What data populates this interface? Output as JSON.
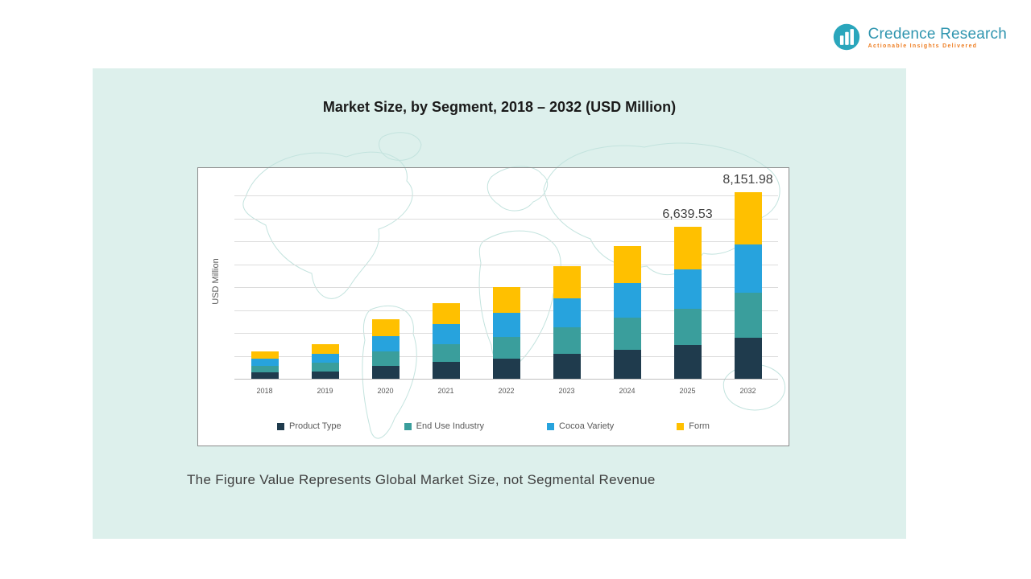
{
  "brand": {
    "name": "Credence Research",
    "tagline": "Actionable Insights Delivered",
    "icon": "bar-chart-logo-icon",
    "name_color": "#2F95AF",
    "tagline_color": "#EE7E23",
    "icon_color": "#2AA6BC"
  },
  "panel": {
    "background": "#DDF0EC"
  },
  "chart_data": {
    "type": "bar",
    "stacked": true,
    "title": "Market Size, by Segment, 2018 – 2032 (USD Million)",
    "ylabel": "USD Million",
    "xlabel": "",
    "categories": [
      "2018",
      "2019",
      "2020",
      "2021",
      "2022",
      "2023",
      "2024",
      "2025",
      "2032"
    ],
    "series": [
      {
        "name": "Product Type",
        "color": "#1F3B4D",
        "values": [
          264,
          330,
          572,
          726,
          880,
          1078,
          1276,
          1460.7,
          1793.44
        ]
      },
      {
        "name": "End Use Industry",
        "color": "#3A9E9C",
        "values": [
          288,
          360,
          624,
          792,
          960,
          1176,
          1392,
          1593.49,
          1956.48
        ]
      },
      {
        "name": "Cocoa Variety",
        "color": "#27A3DD",
        "values": [
          312,
          390,
          676,
          858,
          1040,
          1274,
          1508,
          1726.28,
          2119.51
        ]
      },
      {
        "name": "Form",
        "color": "#FFC000",
        "values": [
          336,
          420,
          728,
          924,
          1120,
          1372,
          1624,
          1859.06,
          2282.55
        ]
      }
    ],
    "totals": [
      1200,
      1500,
      2600,
      3300,
      4000,
      4900,
      5800,
      6639.53,
      8151.98
    ],
    "data_labels": [
      {
        "category": "2025",
        "text": "6,639.53"
      },
      {
        "category": "2032",
        "text": "8,151.98"
      }
    ],
    "ylim": [
      0,
      8500
    ],
    "grid": true,
    "grid_step": 1000,
    "legend_position": "bottom-inside"
  },
  "note": "The Figure Value Represents Global Market Size, not Segmental Revenue"
}
